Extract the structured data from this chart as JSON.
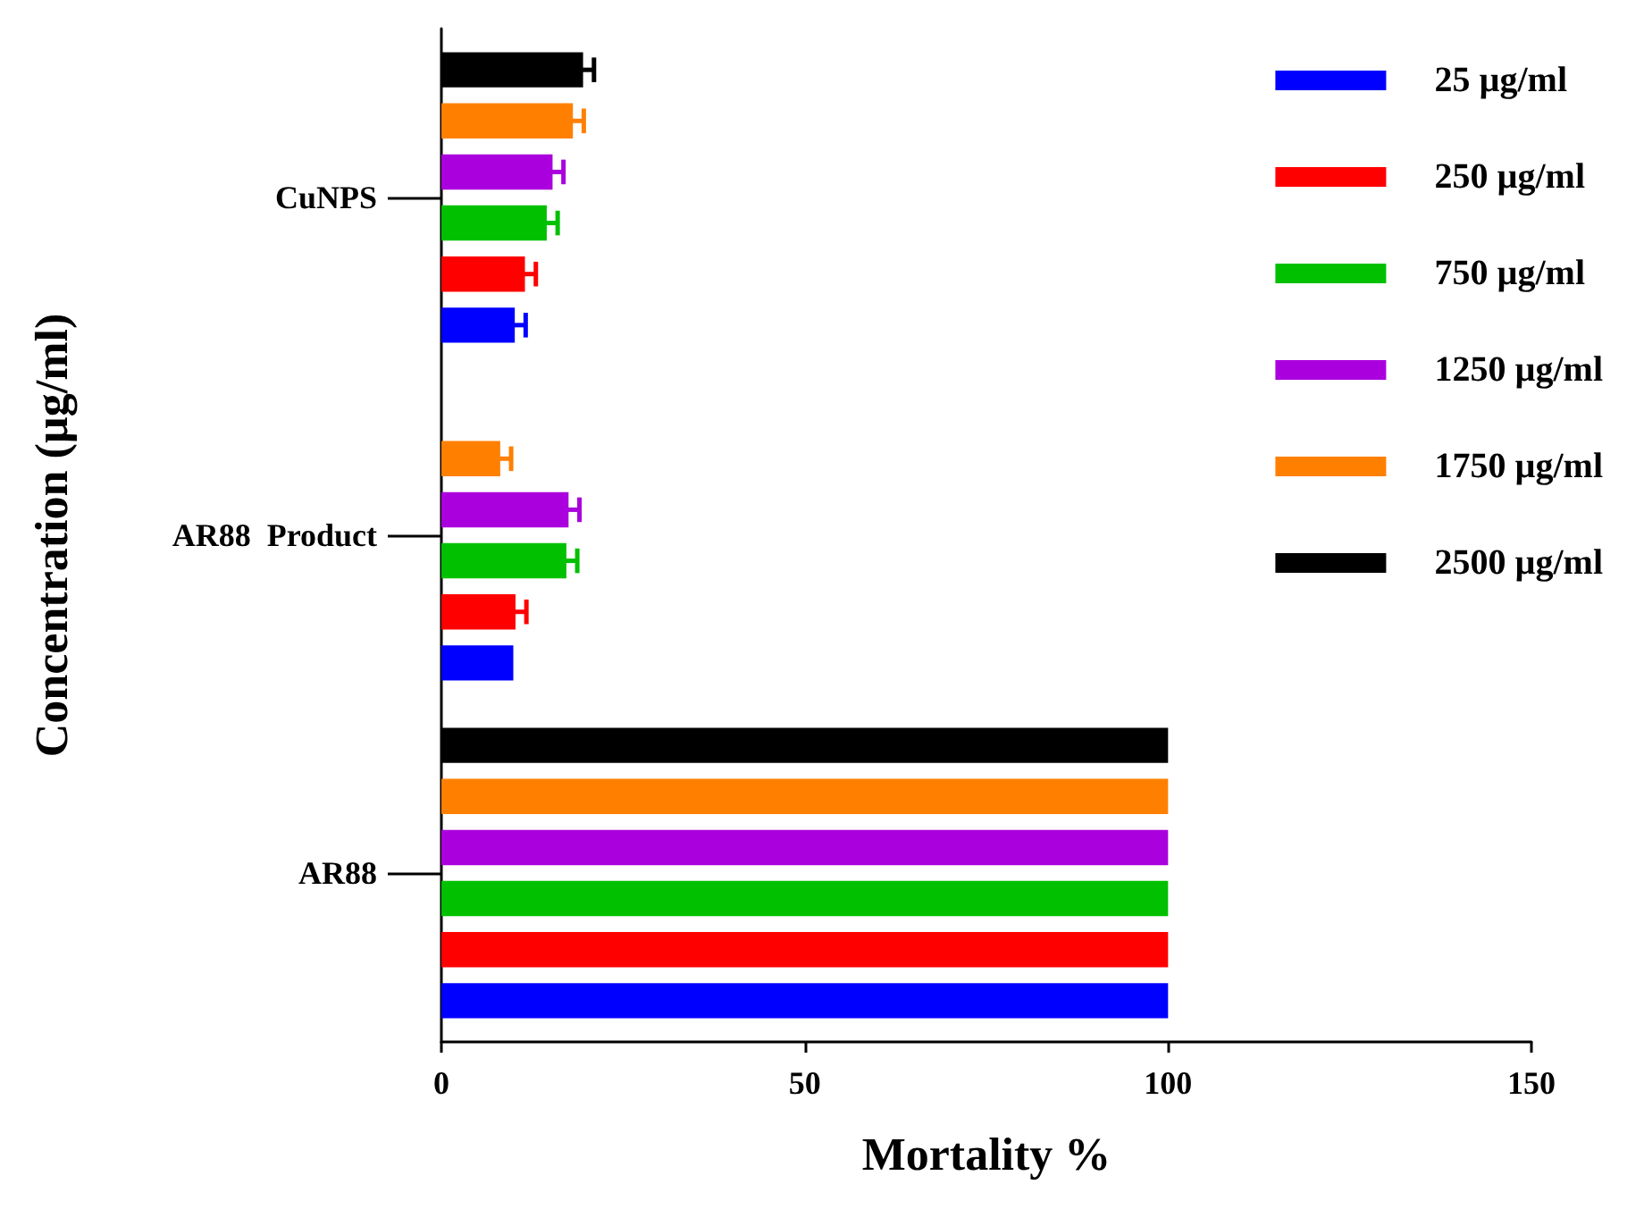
{
  "chart_data": {
    "type": "bar",
    "orientation": "horizontal",
    "xlabel": "Mortality %",
    "ylabel": "Concentration (µg/ml)",
    "categories": [
      "CuNPS",
      "AR88  Product",
      "AR88"
    ],
    "xlim": [
      0,
      150
    ],
    "xticks": [
      0,
      50,
      100,
      150
    ],
    "grid": false,
    "legend": "top right",
    "series": [
      {
        "name": "25 µg/ml",
        "color": "#0000ff",
        "values": [
          10.1,
          9.9,
          100
        ],
        "errors": [
          1.5,
          null,
          null
        ]
      },
      {
        "name": "250 µg/ml",
        "color": "#ff0000",
        "values": [
          11.5,
          10.2,
          100
        ],
        "errors": [
          1.5,
          1.5,
          null
        ]
      },
      {
        "name": "750 µg/ml",
        "color": "#00c000",
        "values": [
          14.5,
          17.2,
          100
        ],
        "errors": [
          1.5,
          1.5,
          null
        ]
      },
      {
        "name": "1250 µg/ml",
        "color": "#aa00dd",
        "values": [
          15.3,
          17.5,
          100
        ],
        "errors": [
          1.5,
          1.5,
          null
        ]
      },
      {
        "name": "1750 µg/ml",
        "color": "#ff8000",
        "values": [
          18.1,
          8.1,
          100
        ],
        "errors": [
          1.5,
          1.5,
          null
        ]
      },
      {
        "name": "2500 µg/ml",
        "color": "#000000",
        "values": [
          19.5,
          null,
          100
        ],
        "errors": [
          1.5,
          null,
          null
        ]
      }
    ]
  }
}
